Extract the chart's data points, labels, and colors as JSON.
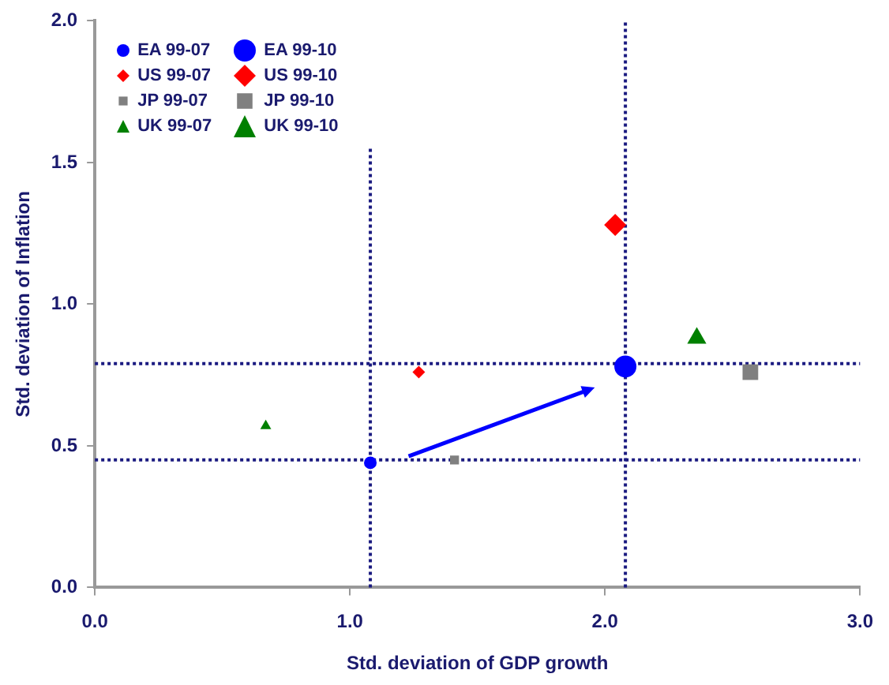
{
  "chart_data": {
    "type": "scatter",
    "xlabel": "Std. deviation of GDP growth",
    "ylabel": "Std. deviation of Inflation",
    "series": [
      {
        "name": "EA 99-07",
        "color": "#0000ff",
        "marker": "circle",
        "x": [
          1.08
        ],
        "values": [
          0.44
        ]
      },
      {
        "name": "EA 99-10",
        "color": "#0000ff",
        "marker": "circle",
        "x": [
          2.08
        ],
        "values": [
          0.78
        ]
      },
      {
        "name": "US 99-07",
        "color": "#ff0000",
        "marker": "diamond",
        "x": [
          1.27
        ],
        "values": [
          0.76
        ]
      },
      {
        "name": "US 99-10",
        "color": "#ff0000",
        "marker": "diamond",
        "x": [
          2.04
        ],
        "values": [
          1.28
        ]
      },
      {
        "name": "JP 99-07",
        "color": "#808080",
        "marker": "square",
        "x": [
          1.41
        ],
        "values": [
          0.45
        ]
      },
      {
        "name": "JP 99-10",
        "color": "#808080",
        "marker": "square",
        "x": [
          2.57
        ],
        "values": [
          0.76
        ]
      },
      {
        "name": "UK 99-07",
        "color": "#008000",
        "marker": "triangle",
        "x": [
          0.67
        ],
        "values": [
          0.57
        ]
      },
      {
        "name": "UK 99-10",
        "color": "#008000",
        "marker": "triangle",
        "x": [
          2.36
        ],
        "values": [
          0.88
        ]
      }
    ],
    "xlim": [
      0,
      3
    ],
    "ylim": [
      0,
      2
    ],
    "xticks": [
      {
        "value": 0,
        "label": "0.0"
      },
      {
        "value": 1,
        "label": "1.0"
      },
      {
        "value": 2,
        "label": "2.0"
      },
      {
        "value": 3,
        "label": "3.0"
      }
    ],
    "yticks": [
      {
        "value": 0,
        "label": "0.0"
      },
      {
        "value": 0.5,
        "label": "0.5"
      },
      {
        "value": 1,
        "label": "1.0"
      },
      {
        "value": 1.5,
        "label": "1.5"
      },
      {
        "value": 2,
        "label": "2.0"
      }
    ],
    "ref_lines": [
      {
        "axis": "x",
        "value": 1.08,
        "color": "#1a1a80",
        "line_style": "dotted"
      },
      {
        "axis": "x",
        "value": 2.08,
        "color": "#1a1a80",
        "line_style": "dotted"
      },
      {
        "axis": "y",
        "value": 0.79,
        "color": "#1a1a80",
        "line_style": "dotted"
      },
      {
        "axis": "y",
        "value": 0.45,
        "color": "#1a1a80",
        "line_style": "dotted"
      }
    ],
    "grid": false,
    "legend": "top left"
  }
}
